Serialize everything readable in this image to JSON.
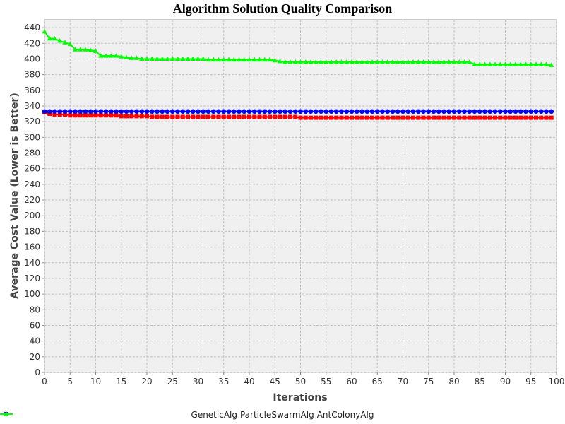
{
  "chart_data": {
    "type": "line",
    "title": "Algorithm Solution Quality Comparison",
    "xlabel": "Iterations",
    "ylabel": "Average Cost Value (Lower is Better)",
    "xlim": [
      0,
      100
    ],
    "ylim": [
      0,
      450
    ],
    "x_ticks": [
      0,
      5,
      10,
      15,
      20,
      25,
      30,
      35,
      40,
      45,
      50,
      55,
      60,
      65,
      70,
      75,
      80,
      85,
      90,
      95,
      100
    ],
    "y_ticks": [
      0,
      20,
      40,
      60,
      80,
      100,
      120,
      140,
      160,
      180,
      200,
      220,
      240,
      260,
      280,
      300,
      320,
      340,
      360,
      380,
      400,
      420,
      440
    ],
    "grid": true,
    "legend_position": "bottom",
    "series": [
      {
        "name": "GeneticAlg",
        "color": "#ff0000",
        "marker": "square",
        "x": [
          0,
          1,
          2,
          5,
          10,
          15,
          20,
          21,
          50,
          99
        ],
        "y": [
          332,
          330,
          329,
          328,
          328,
          327,
          327,
          326,
          325,
          325
        ]
      },
      {
        "name": "ParticleSwarmAlg",
        "color": "#0000ff",
        "marker": "circle",
        "x": [
          0,
          99
        ],
        "y": [
          333,
          333
        ]
      },
      {
        "name": "AntColonyAlg",
        "color": "#00ff00",
        "marker": "triangle",
        "x": [
          0,
          1,
          3,
          4,
          5,
          6,
          9,
          10,
          11,
          15,
          16,
          17,
          19,
          20,
          31,
          32,
          45,
          46,
          47,
          83,
          84,
          98,
          99
        ],
        "y": [
          435,
          426,
          423,
          421,
          419,
          412,
          411,
          410,
          404,
          403,
          402,
          401,
          400,
          400,
          400,
          399,
          398,
          397,
          396,
          396,
          393,
          393,
          392
        ]
      }
    ]
  }
}
